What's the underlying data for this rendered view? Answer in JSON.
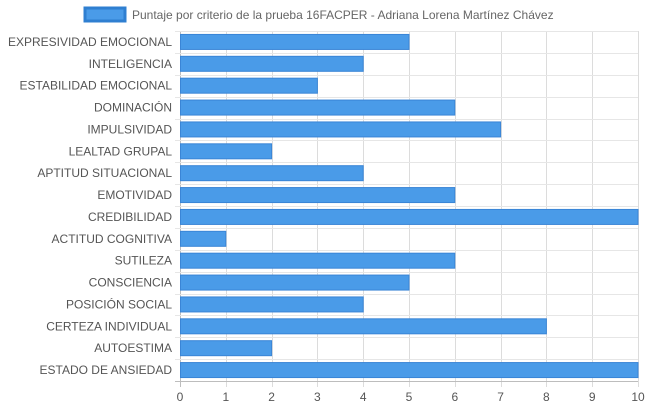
{
  "chart_data": {
    "type": "bar",
    "orientation": "horizontal",
    "categories": [
      "EXPRESIVIDAD EMOCIONAL",
      "INTELIGENCIA",
      "ESTABILIDAD EMOCIONAL",
      "DOMINACIÓN",
      "IMPULSIVIDAD",
      "LEALTAD GRUPAL",
      "APTITUD SITUACIONAL",
      "EMOTIVIDAD",
      "CREDIBILIDAD",
      "ACTITUD COGNITIVA",
      "SUTILEZA",
      "CONSCIENCIA",
      "POSICIÓN SOCIAL",
      "CERTEZA INDIVIDUAL",
      "AUTOESTIMA",
      "ESTADO DE ANSIEDAD"
    ],
    "series": [
      {
        "name": "Puntaje por criterio de la prueba 16FACPER - Adriana Lorena Martínez Chávez",
        "values": [
          5,
          4,
          3,
          6,
          7,
          2,
          4,
          6,
          10,
          1,
          6,
          5,
          4,
          8,
          2,
          10
        ],
        "color": "#4a9be8",
        "border_color": "#3a85d6"
      }
    ],
    "xlim": [
      0,
      10
    ],
    "x_ticks": [
      0,
      1,
      2,
      3,
      4,
      5,
      6,
      7,
      8,
      9,
      10
    ],
    "grid": true,
    "legend_position": "top"
  }
}
